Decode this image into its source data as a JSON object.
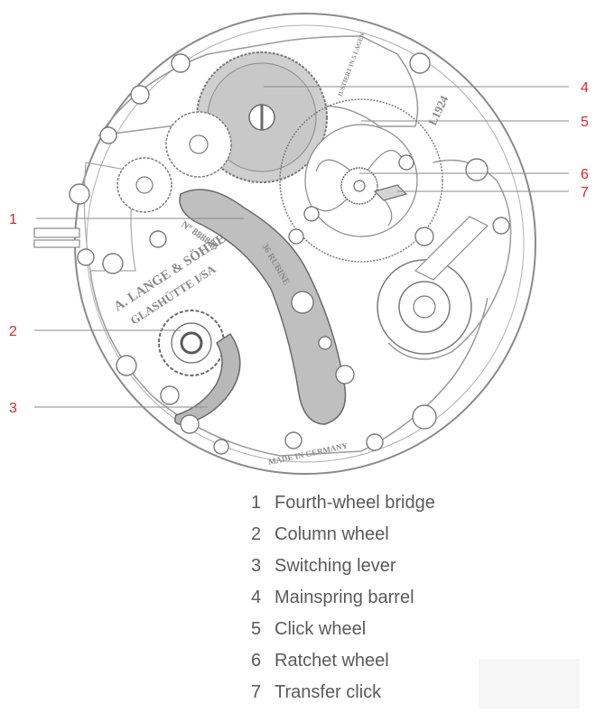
{
  "diagram": {
    "engravings": {
      "brand": "A. LANGE & SÖHNE",
      "city": "GLASHÜTTE I/SA",
      "serial": "Nº 888888",
      "rubies": "36 RUBINE",
      "made": "MADE IN GERMANY",
      "calibre": "L1924",
      "adjust": "JUSTIERT IN 5 LAGEN"
    },
    "callouts": [
      {
        "number": "1"
      },
      {
        "number": "2"
      },
      {
        "number": "3"
      },
      {
        "number": "4"
      },
      {
        "number": "5"
      },
      {
        "number": "6"
      },
      {
        "number": "7"
      }
    ],
    "colors": {
      "callout": "#d9262b",
      "line": "#8a8a8a",
      "highlight": "#c8c8c8"
    }
  },
  "legend": {
    "items": [
      {
        "number": "1",
        "label": "Fourth-wheel bridge"
      },
      {
        "number": "2",
        "label": "Column wheel"
      },
      {
        "number": "3",
        "label": "Switching lever"
      },
      {
        "number": "4",
        "label": "Mainspring barrel"
      },
      {
        "number": "5",
        "label": "Click wheel"
      },
      {
        "number": "6",
        "label": "Ratchet wheel"
      },
      {
        "number": "7",
        "label": "Transfer click"
      }
    ]
  }
}
